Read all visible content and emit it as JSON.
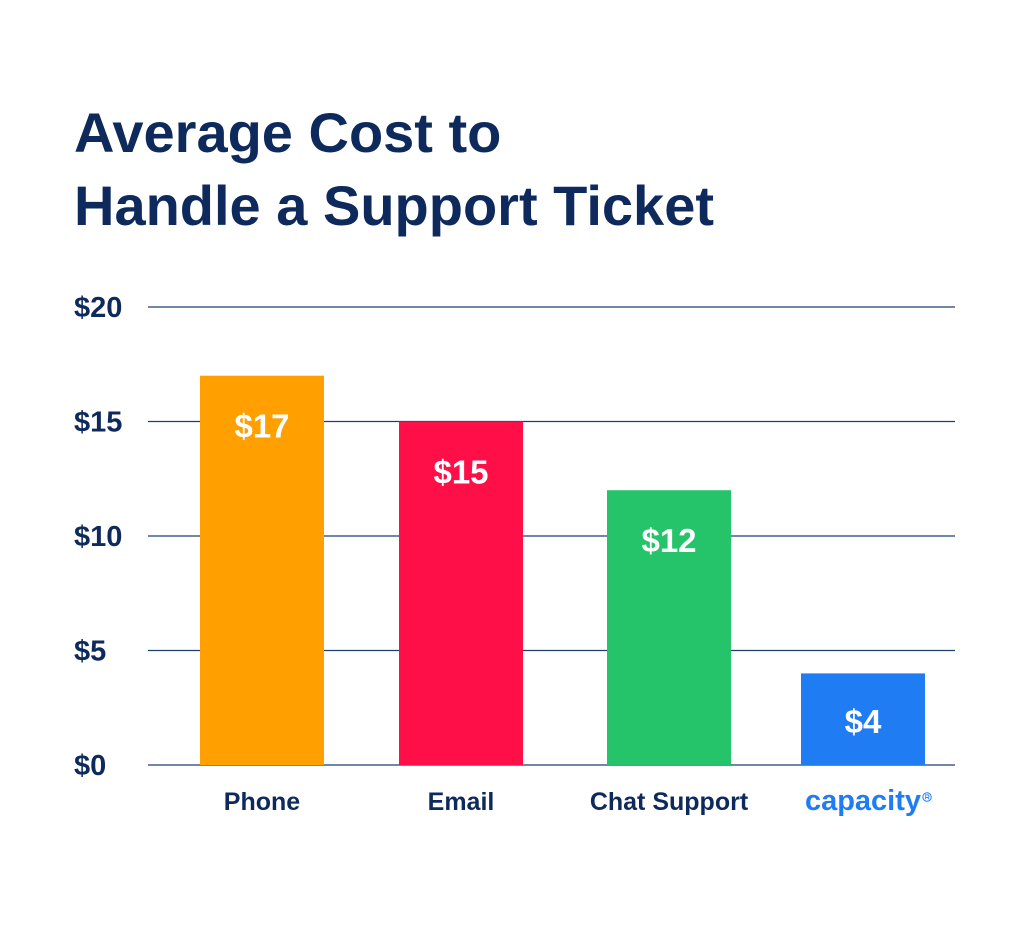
{
  "title": {
    "line1": "Average Cost to",
    "line2": "Handle a Support Ticket"
  },
  "colors": {
    "title": "#0e2a5c",
    "axis_text": "#0e2a5c",
    "grid": "#1f3f74",
    "brand": "#1f7cf2",
    "value_label": "#ffffff"
  },
  "chart_data": {
    "type": "bar",
    "categories": [
      "Phone",
      "Email",
      "Chat Support",
      "capacity"
    ],
    "values": [
      17,
      15,
      12,
      4
    ],
    "value_labels": [
      "$17",
      "$15",
      "$12",
      "$4"
    ],
    "bar_colors": [
      "#ff9f00",
      "#ff0f48",
      "#26c46a",
      "#1f7cf2"
    ],
    "category_styles": [
      "normal",
      "normal",
      "normal",
      "brand-logo"
    ],
    "yticks": [
      0,
      5,
      10,
      15,
      20
    ],
    "ytick_labels": [
      "$0",
      "$5",
      "$10",
      "$15",
      "$20"
    ],
    "ylim": [
      0,
      20
    ],
    "grid": true,
    "legend": "none",
    "title": "Average Cost to Handle a Support Ticket",
    "xlabel": "",
    "ylabel": ""
  }
}
